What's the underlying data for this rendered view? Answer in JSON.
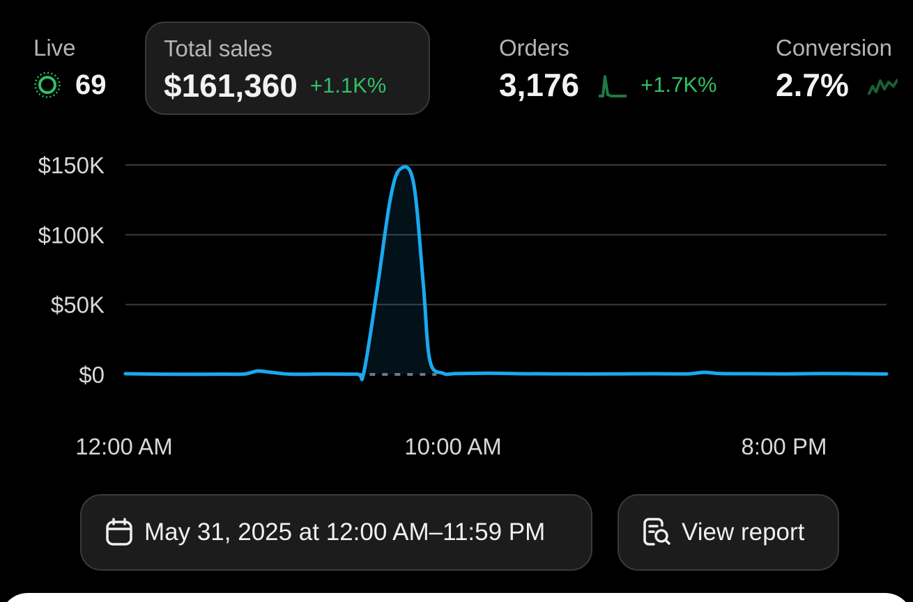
{
  "metrics": {
    "live": {
      "label": "Live",
      "value": "69"
    },
    "total_sales": {
      "label": "Total sales",
      "value": "$161,360",
      "change": "+1.1K%"
    },
    "orders": {
      "label": "Orders",
      "value": "3,176",
      "change": "+1.7K%"
    },
    "conversion": {
      "label": "Conversion",
      "value": "2.7%"
    }
  },
  "colors": {
    "line": "#1aa9ef",
    "positive": "#2fc066",
    "comparison": "#6d7a84"
  },
  "chart_data": {
    "type": "line",
    "x_tick_labels": [
      "12:00 AM",
      "10:00 AM",
      "8:00 PM"
    ],
    "y_tick_labels": [
      "$150K",
      "$100K",
      "$50K",
      "$0"
    ],
    "ylim": [
      0,
      150000
    ],
    "xlim": [
      0,
      23
    ],
    "grid": true,
    "series": [
      {
        "x": [
          0,
          1,
          2,
          3,
          3.6,
          4,
          4.4,
          5,
          6,
          7,
          7.2,
          7.6,
          8,
          8.3,
          8.7,
          9,
          9.2,
          9.6,
          10,
          11,
          12,
          13,
          14,
          15,
          16,
          17,
          17.5,
          18,
          19,
          20,
          21,
          22,
          23
        ],
        "y": [
          500,
          200,
          100,
          200,
          300,
          2500,
          1500,
          200,
          300,
          200,
          1000,
          60000,
          125000,
          147000,
          138000,
          65000,
          10000,
          800,
          600,
          900,
          500,
          400,
          300,
          400,
          500,
          400,
          1500,
          600,
          500,
          400,
          600,
          500,
          300
        ]
      },
      {
        "x": [
          7,
          7.5,
          8,
          8.5,
          9,
          9.4
        ],
        "y": [
          0,
          0,
          0,
          0,
          0,
          0
        ]
      }
    ]
  },
  "date_button": {
    "label": "May 31, 2025 at 12:00 AM–11:59 PM",
    "icon": "calendar-icon"
  },
  "report_button": {
    "label": "View report",
    "icon": "report-search-icon"
  }
}
